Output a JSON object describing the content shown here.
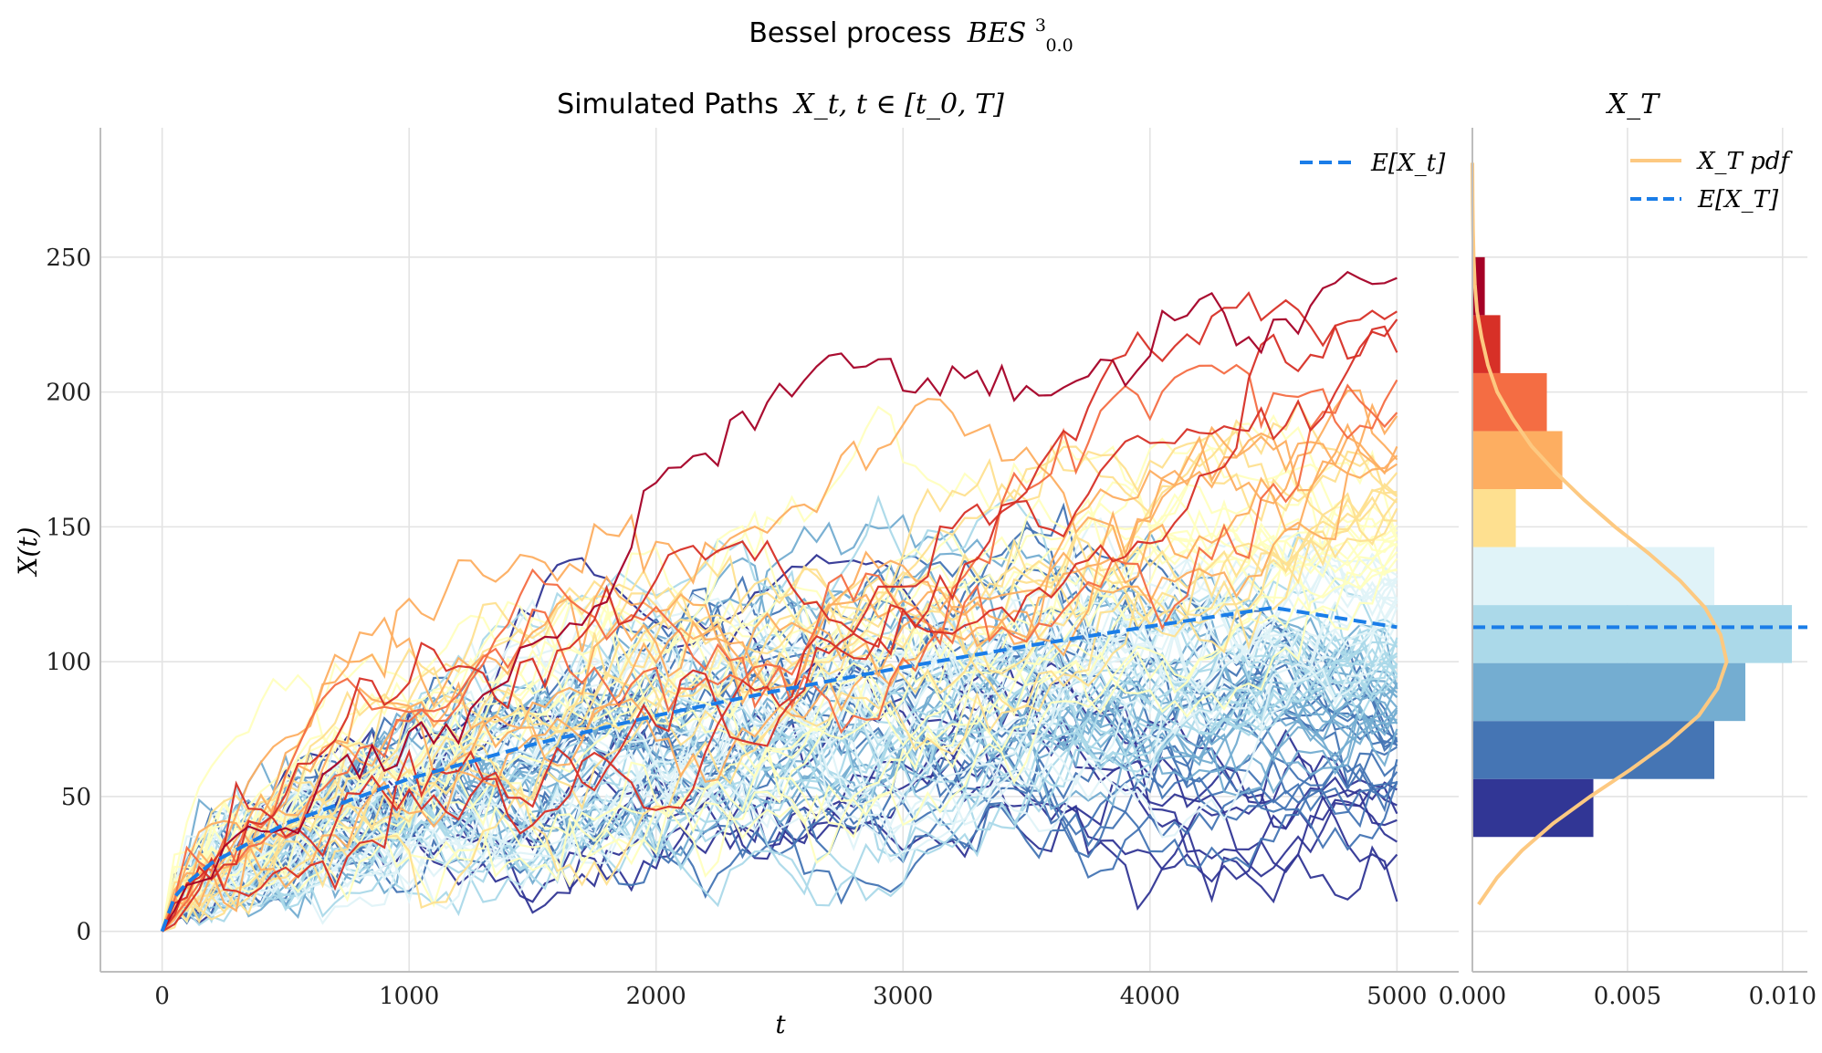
{
  "figure": {
    "suptitle_prefix": "Bessel process",
    "suptitle_math": "BES",
    "suptitle_sup": "3",
    "suptitle_sub": "0.0"
  },
  "chart_data": [
    {
      "type": "line",
      "title_prefix": "Simulated Paths",
      "title_math": "X_t, t ∈ [t_0, T]",
      "xlabel": "t",
      "ylabel": "X(t)",
      "xlim": [
        -250,
        5250
      ],
      "ylim": [
        -15,
        298
      ],
      "xticks": [
        0,
        1000,
        2000,
        3000,
        4000,
        5000
      ],
      "yticks": [
        0,
        50,
        100,
        150,
        200,
        250
      ],
      "grid": true,
      "n_paths": 100,
      "n_steps": 100,
      "path_end_values": "colored by terminal value (RdYlBu colormap, high = red, low = blue)",
      "path_colormap": [
        "#313695",
        "#4575b4",
        "#74add1",
        "#abd9e9",
        "#e0f3f8",
        "#ffffbf",
        "#fee090",
        "#fdae61",
        "#f46d43",
        "#d73027",
        "#a50026"
      ],
      "mean_line": {
        "name": "E[X_t]",
        "color": "#1a7de8",
        "x": [
          0,
          50,
          100,
          200,
          500,
          1000,
          1500,
          2000,
          2500,
          3000,
          3500,
          4000,
          4500,
          5000
        ],
        "y": [
          0,
          12.7,
          17.9,
          25.3,
          40.0,
          56.6,
          69.3,
          80.0,
          89.4,
          97.9,
          105.8,
          113.1,
          120.0,
          112.8
        ]
      },
      "legend": {
        "position": "upper right",
        "entries": [
          "E[X_t]"
        ]
      }
    },
    {
      "type": "bar",
      "orientation": "horizontal",
      "title": "X_T",
      "xlim": [
        0,
        0.0108
      ],
      "xticks": [
        "0.000",
        "0.005",
        "0.010"
      ],
      "bins": [
        {
          "lo": 35,
          "hi": 56.5,
          "density": 0.0039,
          "color": "#313695"
        },
        {
          "lo": 56.5,
          "hi": 78,
          "density": 0.0078,
          "color": "#4575b4"
        },
        {
          "lo": 78,
          "hi": 99.5,
          "density": 0.0088,
          "color": "#74add1"
        },
        {
          "lo": 99.5,
          "hi": 121,
          "density": 0.0103,
          "color": "#abd9e9"
        },
        {
          "lo": 121,
          "hi": 142.5,
          "density": 0.0078,
          "color": "#e0f3f8"
        },
        {
          "lo": 142.5,
          "hi": 164,
          "density": 0.0014,
          "color": "#fee090"
        },
        {
          "lo": 164,
          "hi": 185.5,
          "density": 0.0029,
          "color": "#fdae61"
        },
        {
          "lo": 185.5,
          "hi": 207,
          "density": 0.0024,
          "color": "#f46d43"
        },
        {
          "lo": 207,
          "hi": 228.5,
          "density": 0.0009,
          "color": "#d73027"
        },
        {
          "lo": 228.5,
          "hi": 250,
          "density": 0.0004,
          "color": "#a50026"
        }
      ],
      "pdf": {
        "name": "X_T pdf",
        "color": "#fdc981",
        "y": [
          10,
          20,
          30,
          40,
          50,
          60,
          70,
          80,
          90,
          100,
          110,
          120,
          130,
          140,
          150,
          160,
          170,
          180,
          190,
          200,
          210,
          220,
          230,
          240,
          250,
          260,
          270,
          285
        ],
        "density": [
          0.0002,
          0.0008,
          0.0016,
          0.0026,
          0.0038,
          0.0051,
          0.0063,
          0.0073,
          0.0079,
          0.0082,
          0.008,
          0.0075,
          0.0067,
          0.0057,
          0.0046,
          0.0036,
          0.0027,
          0.0019,
          0.0013,
          0.0008,
          0.0005,
          0.0003,
          0.00015,
          8e-05,
          4e-05,
          2e-05,
          1e-05,
          0.0
        ]
      },
      "mean_line": {
        "name": "E[X_T]",
        "value": 112.8,
        "color": "#1a7de8"
      },
      "legend": {
        "position": "upper right",
        "entries": [
          "X_T pdf",
          "E[X_T]"
        ]
      }
    }
  ]
}
